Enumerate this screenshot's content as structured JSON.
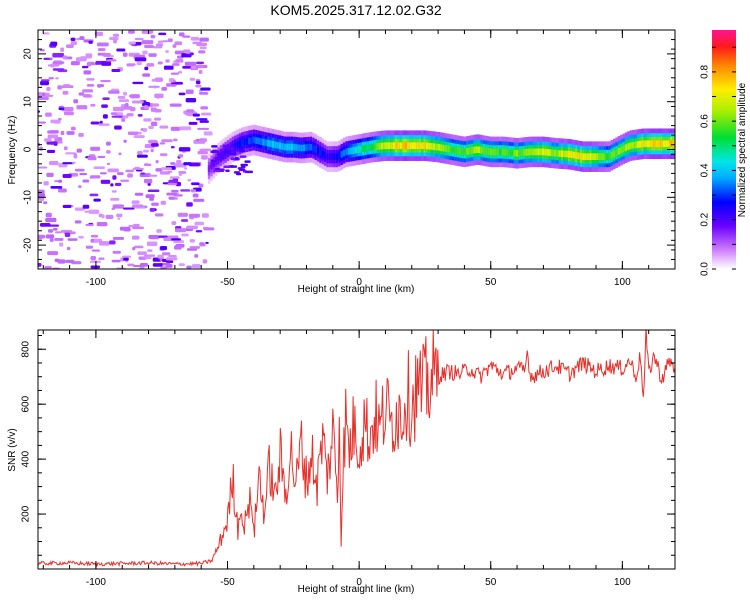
{
  "title": "KOM5.2025.317.12.02.G32",
  "chart_data": [
    {
      "id": "spectrogram",
      "type": "heatmap",
      "xlabel": "Height of straight line (km)",
      "ylabel": "Frequency (Hz)",
      "xlim": [
        -122,
        120
      ],
      "ylim": [
        -25,
        25
      ],
      "xticks": [
        -100,
        -50,
        0,
        50,
        100
      ],
      "yticks": [
        -20,
        -10,
        0,
        10,
        20
      ],
      "colorbar": {
        "label": "Normalized spectral amplitude",
        "range": [
          0,
          0.97
        ],
        "ticks": [
          0,
          0.2,
          0.4,
          0.6,
          0.8
        ]
      },
      "noise_region": {
        "x_range": [
          -122,
          -57
        ],
        "y_range": [
          -25,
          25
        ],
        "amplitude": 0.08
      },
      "ridge": {
        "description": "dominant frequency track vs height",
        "x": [
          -57,
          -53,
          -48,
          -44,
          -40,
          -36,
          -32,
          -28,
          -25,
          -22,
          -18,
          -15,
          -12,
          -10,
          -8,
          -5,
          0,
          5,
          10,
          15,
          20,
          25,
          30,
          35,
          40,
          45,
          50,
          55,
          60,
          65,
          70,
          75,
          80,
          85,
          90,
          95,
          100,
          103,
          108,
          114,
          120
        ],
        "freq": [
          -4,
          -1.5,
          0.5,
          1.5,
          2,
          1.5,
          1,
          0.5,
          0.5,
          0.3,
          0.5,
          -0.5,
          -1.5,
          -1.5,
          -1.5,
          -0.5,
          0,
          0.5,
          0.8,
          0.8,
          0.8,
          0.8,
          0.5,
          0,
          -0.5,
          0,
          -0.5,
          -0.5,
          -0.8,
          -0.5,
          -0.5,
          -0.8,
          -1,
          -1.5,
          -1.5,
          -1.5,
          0,
          0.8,
          1.2,
          1.2,
          1.2
        ],
        "amplitude": [
          0.2,
          0.25,
          0.3,
          0.35,
          0.4,
          0.45,
          0.5,
          0.5,
          0.5,
          0.45,
          0.4,
          0.35,
          0.3,
          0.3,
          0.35,
          0.45,
          0.6,
          0.7,
          0.85,
          0.95,
          0.95,
          0.9,
          0.8,
          0.7,
          0.75,
          0.8,
          0.75,
          0.7,
          0.75,
          0.8,
          0.85,
          0.8,
          0.9,
          0.9,
          0.85,
          0.7,
          0.75,
          0.8,
          0.9,
          0.95,
          0.95
        ]
      }
    },
    {
      "id": "snr",
      "type": "line",
      "xlabel": "Height of straight line (km)",
      "ylabel": "SNR (v/v)",
      "xlim": [
        -122,
        120
      ],
      "ylim": [
        0,
        870
      ],
      "xticks": [
        -100,
        -50,
        0,
        50,
        100
      ],
      "yticks": [
        200,
        400,
        600,
        800
      ],
      "color": "#e8302a",
      "series": [
        {
          "name": "SNR",
          "x": [
            -122,
            -110,
            -100,
            -90,
            -80,
            -70,
            -60,
            -56,
            -54,
            -52,
            -50,
            -48,
            -46,
            -45,
            -44,
            -43,
            -42,
            -41,
            -40,
            -38,
            -36,
            -34,
            -32,
            -30,
            -28,
            -26,
            -24,
            -22,
            -20,
            -18,
            -16,
            -14,
            -12,
            -10,
            -9,
            -8,
            -7.5,
            -7,
            -6,
            -5,
            -4,
            -2,
            0,
            2,
            4,
            6,
            8,
            10,
            12,
            14,
            16,
            18,
            20,
            22,
            24,
            26,
            28,
            30,
            34,
            38,
            42,
            46,
            50,
            55,
            60,
            63,
            64,
            65,
            70,
            75,
            80,
            85,
            90,
            95,
            100,
            103,
            105,
            107,
            108,
            109,
            110,
            112,
            115,
            118,
            120
          ],
          "values": [
            20,
            22,
            18,
            20,
            22,
            18,
            20,
            30,
            70,
            120,
            180,
            330,
            140,
            260,
            120,
            240,
            180,
            300,
            120,
            350,
            200,
            380,
            250,
            410,
            270,
            440,
            300,
            460,
            320,
            420,
            300,
            480,
            340,
            500,
            380,
            250,
            700,
            60,
            400,
            560,
            420,
            520,
            450,
            540,
            480,
            560,
            500,
            600,
            520,
            580,
            560,
            640,
            600,
            660,
            640,
            680,
            690,
            700,
            720,
            710,
            730,
            700,
            740,
            710,
            730,
            720,
            800,
            700,
            720,
            740,
            710,
            750,
            720,
            740,
            730,
            760,
            700,
            780,
            600,
            860,
            710,
            780,
            690,
            760,
            720
          ]
        }
      ]
    }
  ]
}
